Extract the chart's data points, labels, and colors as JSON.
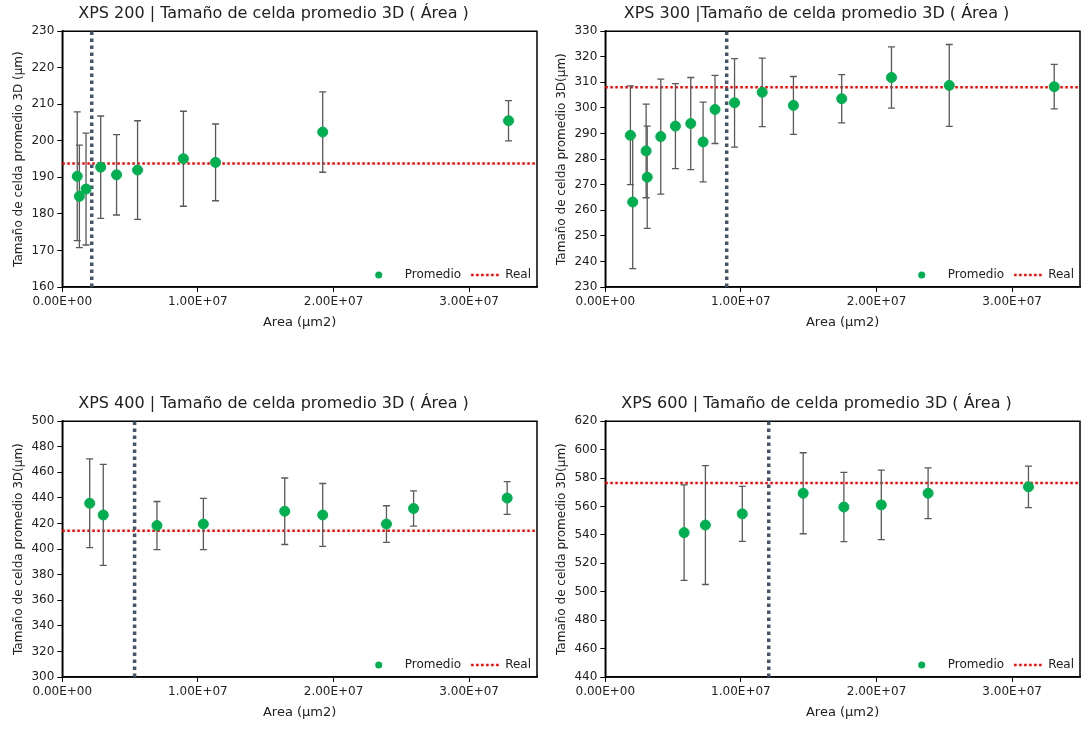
{
  "chart_data": [
    {
      "type": "scatter",
      "title": "XPS 200 | Tamaño de celda promedio 3D ( Área )",
      "xlabel": "Area (μm2)",
      "ylabel": "Tamaño de celda promedio 3D (μm)",
      "marker": "circle",
      "legend": "bottom right",
      "xlim": [
        0,
        35000000
      ],
      "xticks": [
        {
          "value": 0,
          "label": "0.00E+00"
        },
        {
          "value": 10000000,
          "label": "1.00E+07"
        },
        {
          "value": 20000000,
          "label": "2.00E+07"
        },
        {
          "value": 30000000,
          "label": "3.00E+07"
        }
      ],
      "ylim": [
        160,
        230
      ],
      "yticks": [
        160,
        170,
        180,
        190,
        200,
        210,
        220,
        230
      ],
      "series": [
        {
          "name": "Promedio",
          "color": "#00b050",
          "x": [
            1100000,
            1260000,
            1750000,
            2830000,
            4000000,
            5550000,
            8930000,
            11300000,
            19200000,
            32900000
          ],
          "values": [
            190.3,
            184.8,
            186.8,
            192.8,
            190.7,
            192,
            195.1,
            194.1,
            202.4,
            205.5
          ],
          "errors": [
            17.6,
            14,
            15.3,
            14,
            11,
            13.5,
            13,
            10.5,
            11,
            5.5
          ]
        }
      ],
      "ref_lines": [
        {
          "axis": "y",
          "value": 193.8,
          "label": "Real",
          "color": "#ff0000",
          "line_style": "dotted"
        },
        {
          "axis": "x",
          "value": 2170000,
          "color": "#44546a",
          "line_style": "dotted"
        }
      ]
    },
    {
      "type": "scatter",
      "title": "XPS 300 |Tamaño de celda promedio 3D ( Área )",
      "xlabel": "Area (μm2)",
      "ylabel": "Tamaño de celda promedio 3D(μm)",
      "marker": "circle",
      "legend": "bottom right",
      "xlim": [
        0,
        35000000
      ],
      "xticks": [
        {
          "value": 0,
          "label": "0.00E+00"
        },
        {
          "value": 10000000,
          "label": "1.00E+07"
        },
        {
          "value": 20000000,
          "label": "2.00E+07"
        },
        {
          "value": 30000000,
          "label": "3.00E+07"
        }
      ],
      "ylim": [
        230,
        330
      ],
      "yticks": [
        230,
        240,
        250,
        260,
        270,
        280,
        290,
        300,
        310,
        320,
        330
      ],
      "series": [
        {
          "name": "Promedio",
          "color": "#00b050",
          "x": [
            1850000,
            2020000,
            3010000,
            3090000,
            4090000,
            5170000,
            6300000,
            7210000,
            8090000,
            9530000,
            11570000,
            13870000,
            17430000,
            21100000,
            25360000,
            33100000
          ],
          "values": [
            289.3,
            263.2,
            283.2,
            272.9,
            288.8,
            292.9,
            293.9,
            286.7,
            299.4,
            302,
            306.1,
            301,
            303.6,
            311.9,
            308.8,
            308.3
          ],
          "errors": [
            19.3,
            26,
            18.3,
            20,
            22.5,
            16.6,
            18,
            15.6,
            13.3,
            17.3,
            13.4,
            11.3,
            9.4,
            12,
            16,
            8.7
          ]
        }
      ],
      "ref_lines": [
        {
          "axis": "y",
          "value": 308.1,
          "label": "Real",
          "color": "#ff0000",
          "line_style": "dotted"
        },
        {
          "axis": "x",
          "value": 8950000,
          "color": "#44546a",
          "line_style": "dotted"
        }
      ]
    },
    {
      "type": "scatter",
      "title": "XPS 400 | Tamaño de celda promedio 3D ( Área )",
      "xlabel": "Area (μm2)",
      "ylabel": "Tamaño de celda promedio 3D(μm)",
      "marker": "circle",
      "legend": "bottom right",
      "xlim": [
        0,
        35000000
      ],
      "xticks": [
        {
          "value": 0,
          "label": "0.00E+00"
        },
        {
          "value": 10000000,
          "label": "1.00E+07"
        },
        {
          "value": 20000000,
          "label": "2.00E+07"
        },
        {
          "value": 30000000,
          "label": "3.00E+07"
        }
      ],
      "ylim": [
        300,
        500
      ],
      "yticks": [
        300,
        320,
        340,
        360,
        380,
        400,
        420,
        440,
        460,
        480,
        500
      ],
      "series": [
        {
          "name": "Promedio",
          "color": "#00b050",
          "x": [
            2020000,
            3020000,
            6980000,
            10400000,
            16400000,
            19200000,
            23900000,
            25900000,
            32800000
          ],
          "values": [
            435.8,
            426.7,
            418.4,
            419.6,
            429.6,
            426.7,
            419.6,
            431.7,
            439.9
          ],
          "errors": [
            34.7,
            39.5,
            18.8,
            20,
            26,
            24.6,
            14.3,
            13.8,
            12.8
          ]
        }
      ],
      "ref_lines": [
        {
          "axis": "y",
          "value": 414.3,
          "label": "Real",
          "color": "#ff0000",
          "line_style": "dotted"
        },
        {
          "axis": "x",
          "value": 5330000,
          "color": "#44546a",
          "line_style": "dotted"
        }
      ]
    },
    {
      "type": "scatter",
      "title": "XPS 600 | Tamaño de celda promedio 3D ( Área )",
      "xlabel": "Area (μm2)",
      "ylabel": "Tamaño de celda promedio 3D(μm)",
      "marker": "circle",
      "legend": "bottom right",
      "xlim": [
        0,
        35000000
      ],
      "xticks": [
        {
          "value": 0,
          "label": "0.00E+00"
        },
        {
          "value": 10000000,
          "label": "1.00E+07"
        },
        {
          "value": 20000000,
          "label": "2.00E+07"
        },
        {
          "value": 30000000,
          "label": "3.00E+07"
        }
      ],
      "ylim": [
        440,
        620
      ],
      "yticks": [
        440,
        460,
        480,
        500,
        520,
        540,
        560,
        580,
        600,
        620
      ],
      "series": [
        {
          "name": "Promedio",
          "color": "#00b050",
          "x": [
            5810000,
            7380000,
            10100000,
            14590000,
            17590000,
            20350000,
            23800000,
            31200000
          ],
          "values": [
            541.6,
            546.9,
            554.8,
            569.3,
            559.6,
            561.1,
            569.3,
            573.8
          ],
          "errors": [
            33.6,
            41.8,
            19.3,
            28.5,
            24.4,
            24.5,
            17.8,
            14.6
          ]
        }
      ],
      "ref_lines": [
        {
          "axis": "y",
          "value": 576.5,
          "label": "Real",
          "color": "#ff0000",
          "line_style": "dotted"
        },
        {
          "axis": "x",
          "value": 12050000,
          "color": "#44546a",
          "line_style": "dotted"
        }
      ]
    }
  ]
}
